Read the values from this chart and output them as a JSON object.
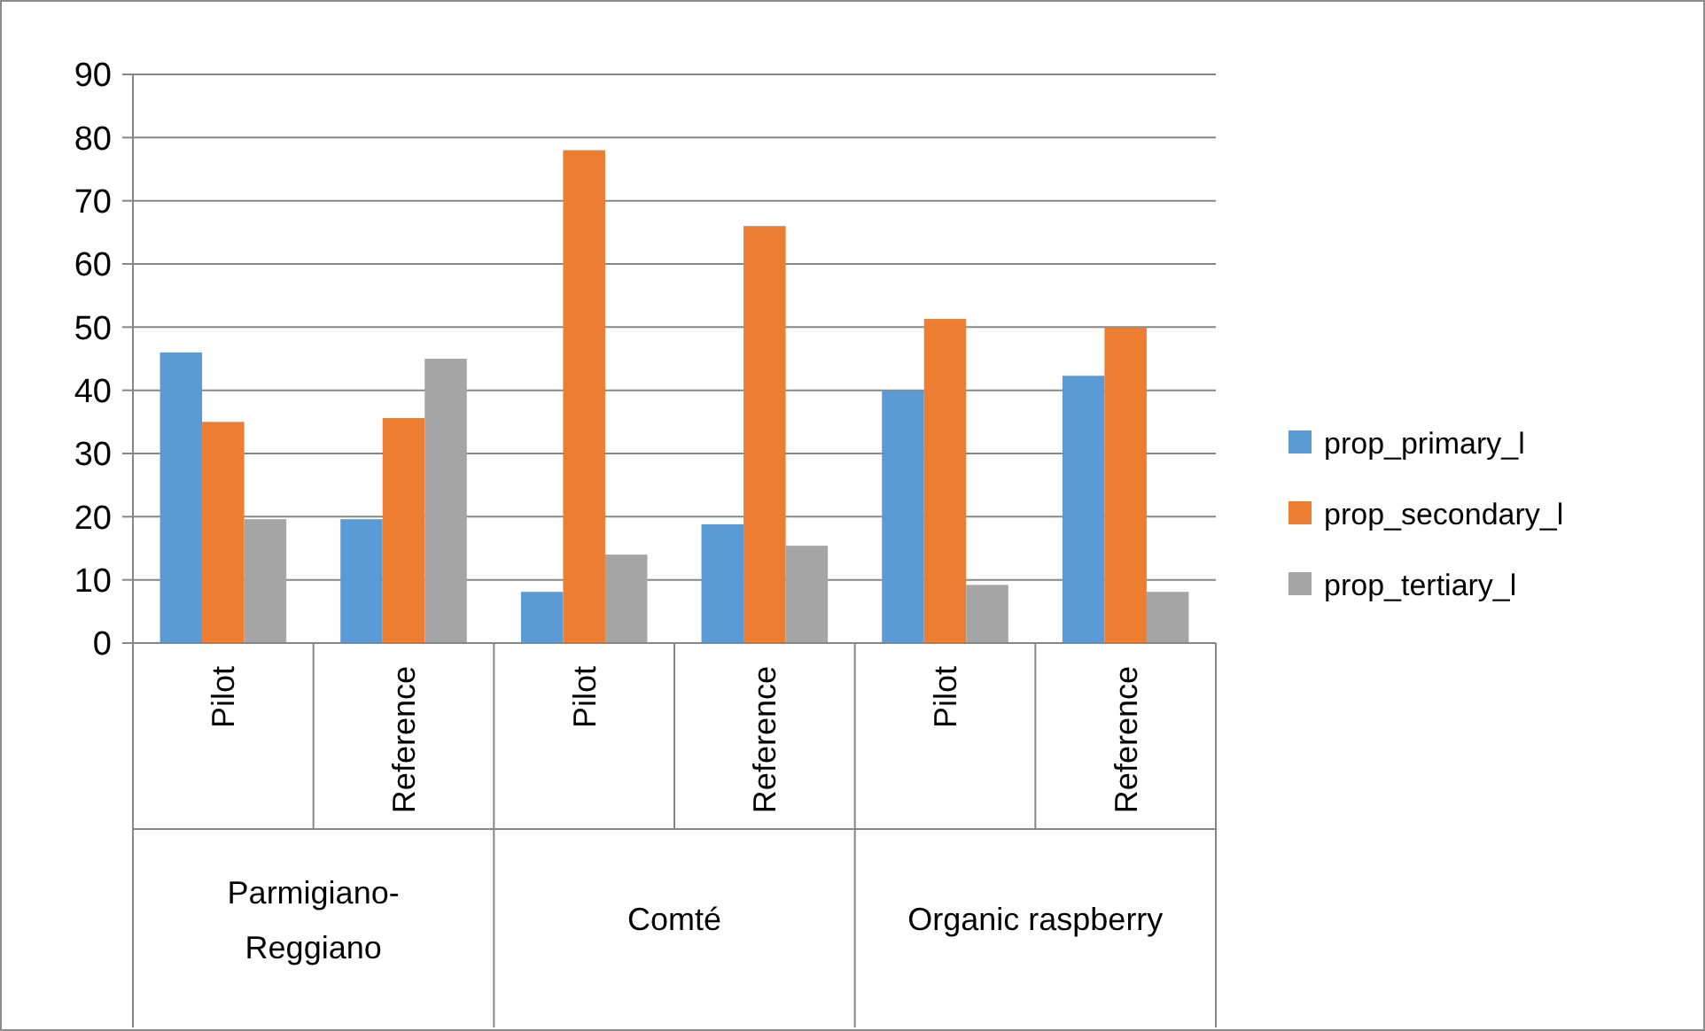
{
  "chart_data": {
    "type": "bar",
    "categories": [
      "Pilot",
      "Reference",
      "Pilot",
      "Reference",
      "Pilot",
      "Reference"
    ],
    "annotations": [
      "Parmigiano-Reggiano",
      "Comté",
      "Organic raspberry"
    ],
    "series": [
      {
        "name": "prop_primary_l",
        "color": "#5b9bd5",
        "values": [
          46,
          19.6,
          8.1,
          18.8,
          40,
          42.3
        ]
      },
      {
        "name": "prop_secondary_l",
        "color": "#ed7d31",
        "values": [
          35,
          35.6,
          78,
          66,
          51.3,
          50
        ]
      },
      {
        "name": "prop_tertiary_l",
        "color": "#a5a5a5",
        "values": [
          19.6,
          45,
          14,
          15.4,
          9.2,
          8.1
        ]
      }
    ],
    "ylim": [
      0,
      90
    ],
    "yticks": [
      0,
      10,
      20,
      30,
      40,
      50,
      60,
      70,
      80,
      90
    ],
    "grid": "y",
    "legend": "right"
  }
}
